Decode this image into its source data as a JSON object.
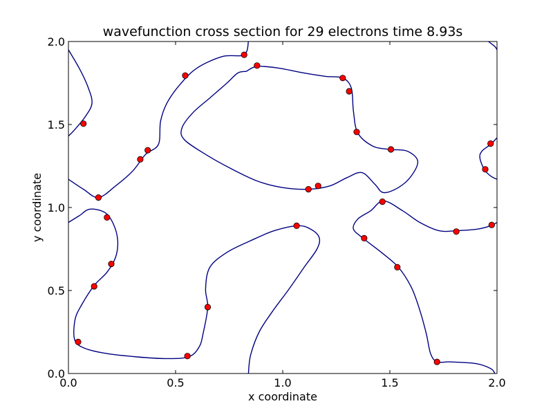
{
  "chart_data": {
    "type": "line",
    "title": "wavefunction cross section for 29 electrons time 8.93s",
    "xlabel": "x coordinate",
    "ylabel": "y coordinate",
    "xlim": [
      0.0,
      2.0
    ],
    "ylim": [
      0.0,
      2.0
    ],
    "xticks": [
      0.0,
      0.5,
      1.0,
      1.5,
      2.0
    ],
    "yticks": [
      0.0,
      0.5,
      1.0,
      1.5,
      2.0
    ],
    "xtick_labels": [
      "0.0",
      "0.5",
      "1.0",
      "1.5",
      "2.0"
    ],
    "ytick_labels": [
      "0.0",
      "0.5",
      "1.0",
      "1.5",
      "2.0"
    ],
    "grid": false,
    "line_color": "#000080",
    "marker_color": "#ff0000",
    "curves": [
      [
        [
          0.0,
          1.95
        ],
        [
          0.05,
          1.84
        ],
        [
          0.09,
          1.73
        ],
        [
          0.11,
          1.63
        ],
        [
          0.08,
          1.55
        ],
        [
          0.03,
          1.47
        ],
        [
          0.0,
          1.43
        ]
      ],
      [
        [
          0.0,
          1.17
        ],
        [
          0.07,
          1.11
        ],
        [
          0.14,
          1.06
        ],
        [
          0.22,
          1.13
        ],
        [
          0.3,
          1.22
        ],
        [
          0.36,
          1.32
        ],
        [
          0.42,
          1.38
        ],
        [
          0.43,
          1.52
        ],
        [
          0.46,
          1.63
        ],
        [
          0.52,
          1.74
        ],
        [
          0.6,
          1.84
        ],
        [
          0.72,
          1.91
        ],
        [
          0.82,
          1.92
        ],
        [
          0.84,
          2.0
        ]
      ],
      [
        [
          0.84,
          0.0
        ],
        [
          0.85,
          0.11
        ],
        [
          0.89,
          0.25
        ],
        [
          0.95,
          0.37
        ],
        [
          1.03,
          0.51
        ],
        [
          1.1,
          0.64
        ],
        [
          1.16,
          0.75
        ],
        [
          1.17,
          0.82
        ],
        [
          1.13,
          0.87
        ],
        [
          1.07,
          0.89
        ],
        [
          0.96,
          0.86
        ],
        [
          0.85,
          0.8
        ],
        [
          0.74,
          0.73
        ],
        [
          0.66,
          0.64
        ],
        [
          0.64,
          0.51
        ],
        [
          0.65,
          0.4
        ],
        [
          0.63,
          0.25
        ],
        [
          0.61,
          0.16
        ],
        [
          0.56,
          0.1
        ],
        [
          0.45,
          0.09
        ],
        [
          0.32,
          0.1
        ],
        [
          0.18,
          0.12
        ],
        [
          0.08,
          0.15
        ],
        [
          0.03,
          0.2
        ],
        [
          0.03,
          0.32
        ],
        [
          0.06,
          0.41
        ],
        [
          0.12,
          0.53
        ],
        [
          0.18,
          0.61
        ],
        [
          0.22,
          0.7
        ],
        [
          0.23,
          0.8
        ],
        [
          0.21,
          0.9
        ],
        [
          0.17,
          0.97
        ],
        [
          0.1,
          0.99
        ],
        [
          0.05,
          0.95
        ],
        [
          0.0,
          0.91
        ]
      ],
      [
        [
          0.83,
          1.82
        ],
        [
          0.88,
          1.85
        ],
        [
          0.98,
          1.84
        ],
        [
          1.1,
          1.81
        ],
        [
          1.2,
          1.79
        ],
        [
          1.28,
          1.78
        ],
        [
          1.32,
          1.72
        ],
        [
          1.33,
          1.58
        ],
        [
          1.35,
          1.45
        ],
        [
          1.42,
          1.37
        ],
        [
          1.5,
          1.35
        ],
        [
          1.58,
          1.34
        ],
        [
          1.63,
          1.28
        ],
        [
          1.6,
          1.19
        ],
        [
          1.54,
          1.12
        ],
        [
          1.47,
          1.09
        ],
        [
          1.43,
          1.14
        ],
        [
          1.37,
          1.21
        ],
        [
          1.3,
          1.18
        ],
        [
          1.22,
          1.13
        ],
        [
          1.12,
          1.11
        ],
        [
          1.0,
          1.12
        ],
        [
          0.88,
          1.16
        ],
        [
          0.75,
          1.24
        ],
        [
          0.64,
          1.32
        ],
        [
          0.54,
          1.41
        ],
        [
          0.53,
          1.48
        ],
        [
          0.58,
          1.57
        ],
        [
          0.66,
          1.66
        ],
        [
          0.74,
          1.75
        ],
        [
          0.79,
          1.81
        ],
        [
          0.83,
          1.82
        ]
      ],
      [
        [
          1.99,
          0.0
        ],
        [
          1.97,
          0.03
        ],
        [
          1.9,
          0.06
        ],
        [
          1.78,
          0.07
        ],
        [
          1.72,
          0.07
        ],
        [
          1.69,
          0.12
        ],
        [
          1.67,
          0.24
        ],
        [
          1.64,
          0.38
        ],
        [
          1.6,
          0.52
        ],
        [
          1.54,
          0.64
        ],
        [
          1.46,
          0.73
        ],
        [
          1.38,
          0.81
        ],
        [
          1.33,
          0.87
        ],
        [
          1.35,
          0.93
        ],
        [
          1.41,
          0.98
        ],
        [
          1.47,
          1.04
        ],
        [
          1.56,
          0.98
        ],
        [
          1.64,
          0.91
        ],
        [
          1.73,
          0.86
        ],
        [
          1.81,
          0.86
        ],
        [
          1.91,
          0.87
        ],
        [
          1.97,
          0.89
        ],
        [
          2.0,
          0.91
        ]
      ],
      [
        [
          2.0,
          1.42
        ],
        [
          1.97,
          1.38
        ],
        [
          1.93,
          1.34
        ],
        [
          1.92,
          1.3
        ],
        [
          1.94,
          1.23
        ],
        [
          1.97,
          1.19
        ],
        [
          2.0,
          1.17
        ]
      ],
      [
        [
          1.96,
          2.0
        ],
        [
          1.99,
          1.97
        ],
        [
          2.0,
          1.95
        ]
      ]
    ],
    "markers": [
      [
        0.07,
        1.505
      ],
      [
        0.545,
        1.795
      ],
      [
        0.82,
        1.92
      ],
      [
        0.88,
        1.855
      ],
      [
        1.28,
        1.78
      ],
      [
        1.31,
        1.7
      ],
      [
        1.345,
        1.455
      ],
      [
        1.505,
        1.35
      ],
      [
        1.97,
        1.385
      ],
      [
        1.945,
        1.23
      ],
      [
        0.37,
        1.345
      ],
      [
        0.335,
        1.29
      ],
      [
        0.14,
        1.06
      ],
      [
        1.12,
        1.11
      ],
      [
        1.165,
        1.13
      ],
      [
        1.465,
        1.035
      ],
      [
        0.18,
        0.94
      ],
      [
        1.065,
        0.89
      ],
      [
        1.81,
        0.855
      ],
      [
        1.975,
        0.895
      ],
      [
        1.38,
        0.815
      ],
      [
        0.2,
        0.66
      ],
      [
        1.535,
        0.64
      ],
      [
        0.12,
        0.525
      ],
      [
        0.65,
        0.4
      ],
      [
        0.045,
        0.19
      ],
      [
        0.555,
        0.105
      ],
      [
        1.72,
        0.07
      ]
    ]
  }
}
